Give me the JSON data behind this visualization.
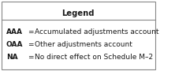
{
  "title": "Legend",
  "rows": [
    {
      "label": "AAA",
      "eq": " = ",
      "desc": "Accumulated adjustments account"
    },
    {
      "label": "OAA",
      "eq": " = ",
      "desc": "Other adjustments account"
    },
    {
      "label": "NA",
      "eq": "   = ",
      "desc": "No direct effect on Schedule M–2"
    }
  ],
  "border_color": "#888888",
  "bg_color": "#ffffff",
  "text_color": "#1a1a1a",
  "title_fontsize": 7.2,
  "body_fontsize": 6.5,
  "figsize": [
    2.22,
    0.9
  ],
  "dpi": 100
}
